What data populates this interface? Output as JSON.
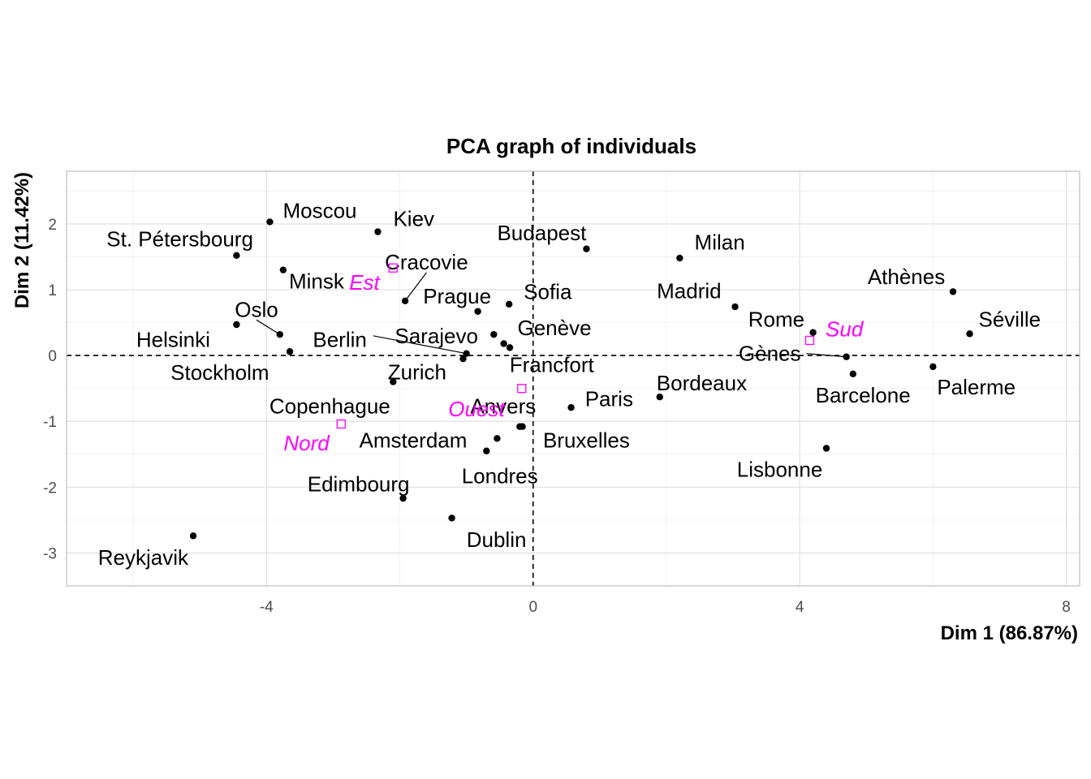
{
  "chart_data": {
    "type": "scatter",
    "title": "PCA graph of individuals",
    "xlabel": "Dim 1 (86.87%)",
    "ylabel": "Dim 2 (11.42%)",
    "xlim": [
      -7.0,
      8.2
    ],
    "ylim": [
      -3.5,
      2.8
    ],
    "x_ticks": [
      -4,
      0,
      4,
      8
    ],
    "y_ticks": [
      -3,
      -2,
      -1,
      0,
      1,
      2
    ],
    "grid": true,
    "reference_lines": {
      "x": 0,
      "y": 0,
      "style": "dashed"
    },
    "point_color": "#000000",
    "supplementary_color": "#ff00ff",
    "individuals": [
      {
        "name": "Moscou",
        "x": -3.95,
        "y": 2.03,
        "lx": -3.2,
        "ly": 2.2
      },
      {
        "name": "Kiev",
        "x": -2.33,
        "y": 1.88,
        "lx": -1.79,
        "ly": 2.08
      },
      {
        "name": "St. Pétersbourg",
        "x": -4.45,
        "y": 1.52,
        "lx": -5.3,
        "ly": 1.77
      },
      {
        "name": "Budapest",
        "x": 0.8,
        "y": 1.62,
        "lx": 0.13,
        "ly": 1.86
      },
      {
        "name": "Milan",
        "x": 2.2,
        "y": 1.48,
        "lx": 2.8,
        "ly": 1.72
      },
      {
        "name": "Minsk",
        "x": -3.75,
        "y": 1.3,
        "lx": -3.25,
        "ly": 1.13
      },
      {
        "name": "Cracovie",
        "x": -1.92,
        "y": 0.83,
        "lx": -1.6,
        "ly": 1.42
      },
      {
        "name": "Athènes",
        "x": 6.3,
        "y": 0.97,
        "lx": 5.6,
        "ly": 1.2
      },
      {
        "name": "Prague",
        "x": -0.83,
        "y": 0.67,
        "lx": -1.14,
        "ly": 0.9
      },
      {
        "name": "Sofia",
        "x": -0.36,
        "y": 0.78,
        "lx": 0.22,
        "ly": 0.97
      },
      {
        "name": "Madrid",
        "x": 3.03,
        "y": 0.74,
        "lx": 2.34,
        "ly": 0.98
      },
      {
        "name": "Séville",
        "x": 6.55,
        "y": 0.33,
        "lx": 7.15,
        "ly": 0.55
      },
      {
        "name": "Rome",
        "x": 4.2,
        "y": 0.35,
        "lx": 3.65,
        "ly": 0.55
      },
      {
        "name": "Oslo",
        "x": -3.8,
        "y": 0.32,
        "lx": -4.15,
        "ly": 0.7
      },
      {
        "name": "Helsinki",
        "x": -4.45,
        "y": 0.47,
        "lx": -5.4,
        "ly": 0.24
      },
      {
        "name": "Berlin",
        "x": -1.0,
        "y": 0.03,
        "lx": -2.9,
        "ly": 0.24
      },
      {
        "name": "Sarajevo",
        "x": -0.59,
        "y": 0.32,
        "lx": -1.45,
        "ly": 0.3
      },
      {
        "name": "Genève",
        "x": -0.44,
        "y": 0.18,
        "lx": 0.32,
        "ly": 0.42
      },
      {
        "name": "Stockholm",
        "x": -3.65,
        "y": 0.06,
        "lx": -4.7,
        "ly": -0.26
      },
      {
        "name": "Zurich",
        "x": -2.1,
        "y": -0.4,
        "lx": -1.74,
        "ly": -0.25
      },
      {
        "name": "Francfort",
        "x": -0.35,
        "y": 0.12,
        "lx": 0.28,
        "ly": -0.14
      },
      {
        "name": "Gènes",
        "x": 4.7,
        "y": -0.02,
        "lx": 3.55,
        "ly": 0.03
      },
      {
        "name": "Barcelone",
        "x": 4.8,
        "y": -0.28,
        "lx": 4.95,
        "ly": -0.6
      },
      {
        "name": "Palerme",
        "x": 6.0,
        "y": -0.17,
        "lx": 6.65,
        "ly": -0.48
      },
      {
        "name": "Bordeaux",
        "x": 1.9,
        "y": -0.63,
        "lx": 2.53,
        "ly": -0.42
      },
      {
        "name": "Paris",
        "x": 0.57,
        "y": -0.79,
        "lx": 1.14,
        "ly": -0.66
      },
      {
        "name": "Copenhague",
        "x": -1.05,
        "y": -0.05,
        "lx": -3.05,
        "ly": -0.77
      },
      {
        "name": "Anvers",
        "x": -0.2,
        "y": -1.08,
        "lx": -0.45,
        "ly": -0.77
      },
      {
        "name": "Bruxelles",
        "x": -0.16,
        "y": -1.08,
        "lx": 0.8,
        "ly": -1.29
      },
      {
        "name": "Amsterdam",
        "x": -0.54,
        "y": -1.26,
        "lx": -1.8,
        "ly": -1.29
      },
      {
        "name": "Londres",
        "x": -0.7,
        "y": -1.45,
        "lx": -0.5,
        "ly": -1.83
      },
      {
        "name": "Lisbonne",
        "x": 4.4,
        "y": -1.41,
        "lx": 3.7,
        "ly": -1.73
      },
      {
        "name": "Edimbourg",
        "x": -1.95,
        "y": -2.17,
        "lx": -2.62,
        "ly": -1.95
      },
      {
        "name": "Dublin",
        "x": -1.22,
        "y": -2.47,
        "lx": -0.55,
        "ly": -2.8
      },
      {
        "name": "Reykjavik",
        "x": -5.1,
        "y": -2.74,
        "lx": -5.85,
        "ly": -3.07
      }
    ],
    "supplementary": [
      {
        "name": "Est",
        "x": -2.1,
        "y": 1.33,
        "lx": -2.53,
        "ly": 1.11
      },
      {
        "name": "Sud",
        "x": 4.15,
        "y": 0.23,
        "lx": 4.67,
        "ly": 0.4
      },
      {
        "name": "Ouest",
        "x": -0.17,
        "y": -0.5,
        "lx": -0.85,
        "ly": -0.81
      },
      {
        "name": "Nord",
        "x": -2.88,
        "y": -1.04,
        "lx": -3.4,
        "ly": -1.33
      }
    ],
    "leader_lines": [
      {
        "from": "Cracovie",
        "fx": -1.92,
        "fy": 0.83,
        "tx": -1.6,
        "ty": 1.26
      },
      {
        "from": "Oslo",
        "fx": -3.8,
        "fy": 0.32,
        "tx": -4.15,
        "ty": 0.54
      },
      {
        "from": "Berlin",
        "fx": -1.0,
        "fy": 0.03,
        "tx": -2.4,
        "ty": 0.3
      },
      {
        "from": "Gènes",
        "fx": 4.7,
        "fy": -0.02,
        "tx": 4.1,
        "ty": 0.03
      }
    ]
  }
}
